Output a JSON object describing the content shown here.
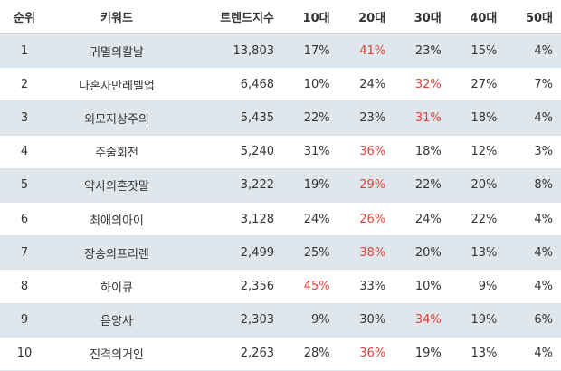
{
  "table": {
    "headers": {
      "rank": "순위",
      "keyword": "키워드",
      "trend": "트렌드지수",
      "age10": "10대",
      "age20": "20대",
      "age30": "30대",
      "age40": "40대",
      "age50": "50대"
    },
    "highlight_color": "#e0433a",
    "stripe_color": "#dfe7ec",
    "rows": [
      {
        "rank": "1",
        "keyword": "귀멸의칼날",
        "trend": "13,803",
        "age10": "17%",
        "age20": "41%",
        "age30": "23%",
        "age40": "15%",
        "age50": "4%",
        "highlight": "age20"
      },
      {
        "rank": "2",
        "keyword": "나혼자만레벨업",
        "trend": "6,468",
        "age10": "10%",
        "age20": "24%",
        "age30": "32%",
        "age40": "27%",
        "age50": "7%",
        "highlight": "age30"
      },
      {
        "rank": "3",
        "keyword": "외모지상주의",
        "trend": "5,435",
        "age10": "22%",
        "age20": "23%",
        "age30": "31%",
        "age40": "18%",
        "age50": "4%",
        "highlight": "age30"
      },
      {
        "rank": "4",
        "keyword": "주술회전",
        "trend": "5,240",
        "age10": "31%",
        "age20": "36%",
        "age30": "18%",
        "age40": "12%",
        "age50": "3%",
        "highlight": "age20"
      },
      {
        "rank": "5",
        "keyword": "약사의혼잣말",
        "trend": "3,222",
        "age10": "19%",
        "age20": "29%",
        "age30": "22%",
        "age40": "20%",
        "age50": "8%",
        "highlight": "age20"
      },
      {
        "rank": "6",
        "keyword": "최애의아이",
        "trend": "3,128",
        "age10": "24%",
        "age20": "26%",
        "age30": "24%",
        "age40": "22%",
        "age50": "4%",
        "highlight": "age20"
      },
      {
        "rank": "7",
        "keyword": "장송의프리렌",
        "trend": "2,499",
        "age10": "25%",
        "age20": "38%",
        "age30": "20%",
        "age40": "13%",
        "age50": "4%",
        "highlight": "age20"
      },
      {
        "rank": "8",
        "keyword": "하이큐",
        "trend": "2,356",
        "age10": "45%",
        "age20": "33%",
        "age30": "10%",
        "age40": "9%",
        "age50": "4%",
        "highlight": "age10"
      },
      {
        "rank": "9",
        "keyword": "음양사",
        "trend": "2,303",
        "age10": "9%",
        "age20": "30%",
        "age30": "34%",
        "age40": "19%",
        "age50": "6%",
        "highlight": "age30"
      },
      {
        "rank": "10",
        "keyword": "진격의거인",
        "trend": "2,263",
        "age10": "28%",
        "age20": "36%",
        "age30": "19%",
        "age40": "13%",
        "age50": "4%",
        "highlight": "age20"
      }
    ]
  }
}
